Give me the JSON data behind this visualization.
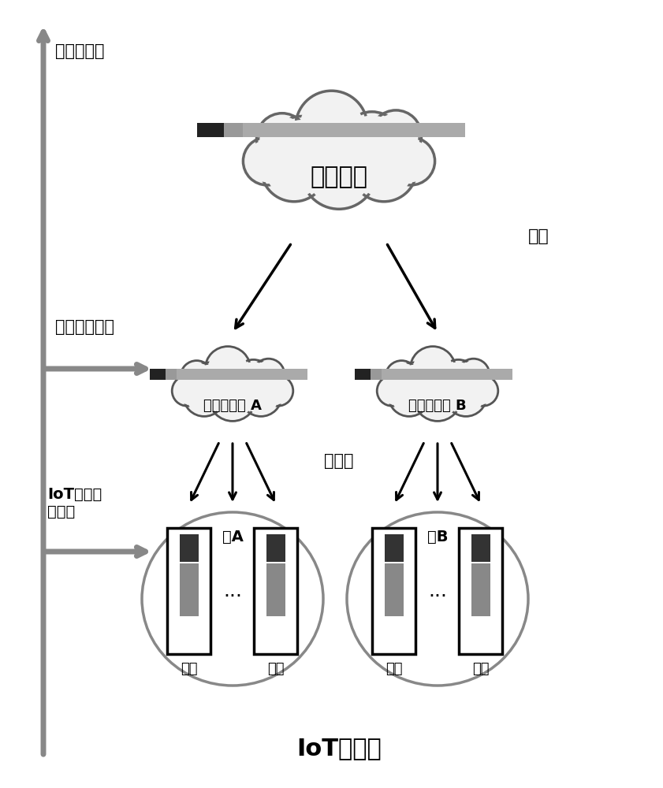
{
  "bg_color": "#ffffff",
  "title": "IoT设备群",
  "cloud_server_label": "云服务器",
  "cloud_label": "云端",
  "edge_label": "边缘端",
  "edge_server_A_label": "边缘服务器 A",
  "edge_server_B_label": "边缘服务器 B",
  "group_A_label": "组A",
  "group_B_label": "组B",
  "data_label": "数据",
  "cloud_exit_label": "云端退出点",
  "edge_exit_label": "边缘端退出点",
  "iot_exit_label": "IoT设备端\n退出点"
}
